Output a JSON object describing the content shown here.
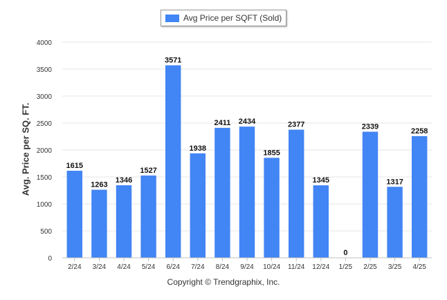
{
  "chart_data": {
    "type": "bar",
    "title": "",
    "ylabel": "Avg. Price per SQ. FT.",
    "xlabel": "",
    "categories": [
      "2/24",
      "3/24",
      "4/24",
      "5/24",
      "6/24",
      "7/24",
      "8/24",
      "9/24",
      "10/24",
      "11/24",
      "12/24",
      "1/25",
      "2/25",
      "3/25",
      "4/25"
    ],
    "series": [
      {
        "name": "Avg Price per SQFT (Sold)",
        "values": [
          1615,
          1263,
          1346,
          1527,
          3571,
          1938,
          2411,
          2434,
          1855,
          2377,
          1345,
          0,
          2339,
          1317,
          2258
        ]
      }
    ],
    "yticks": [
      0,
      500,
      1000,
      1500,
      2000,
      2500,
      3000,
      3500,
      4000
    ],
    "ylim": [
      0,
      4000
    ],
    "grid": true,
    "legend": "top-center",
    "bar_color": "#4285f4"
  },
  "footer": "Copyright © Trendgraphix, Inc."
}
